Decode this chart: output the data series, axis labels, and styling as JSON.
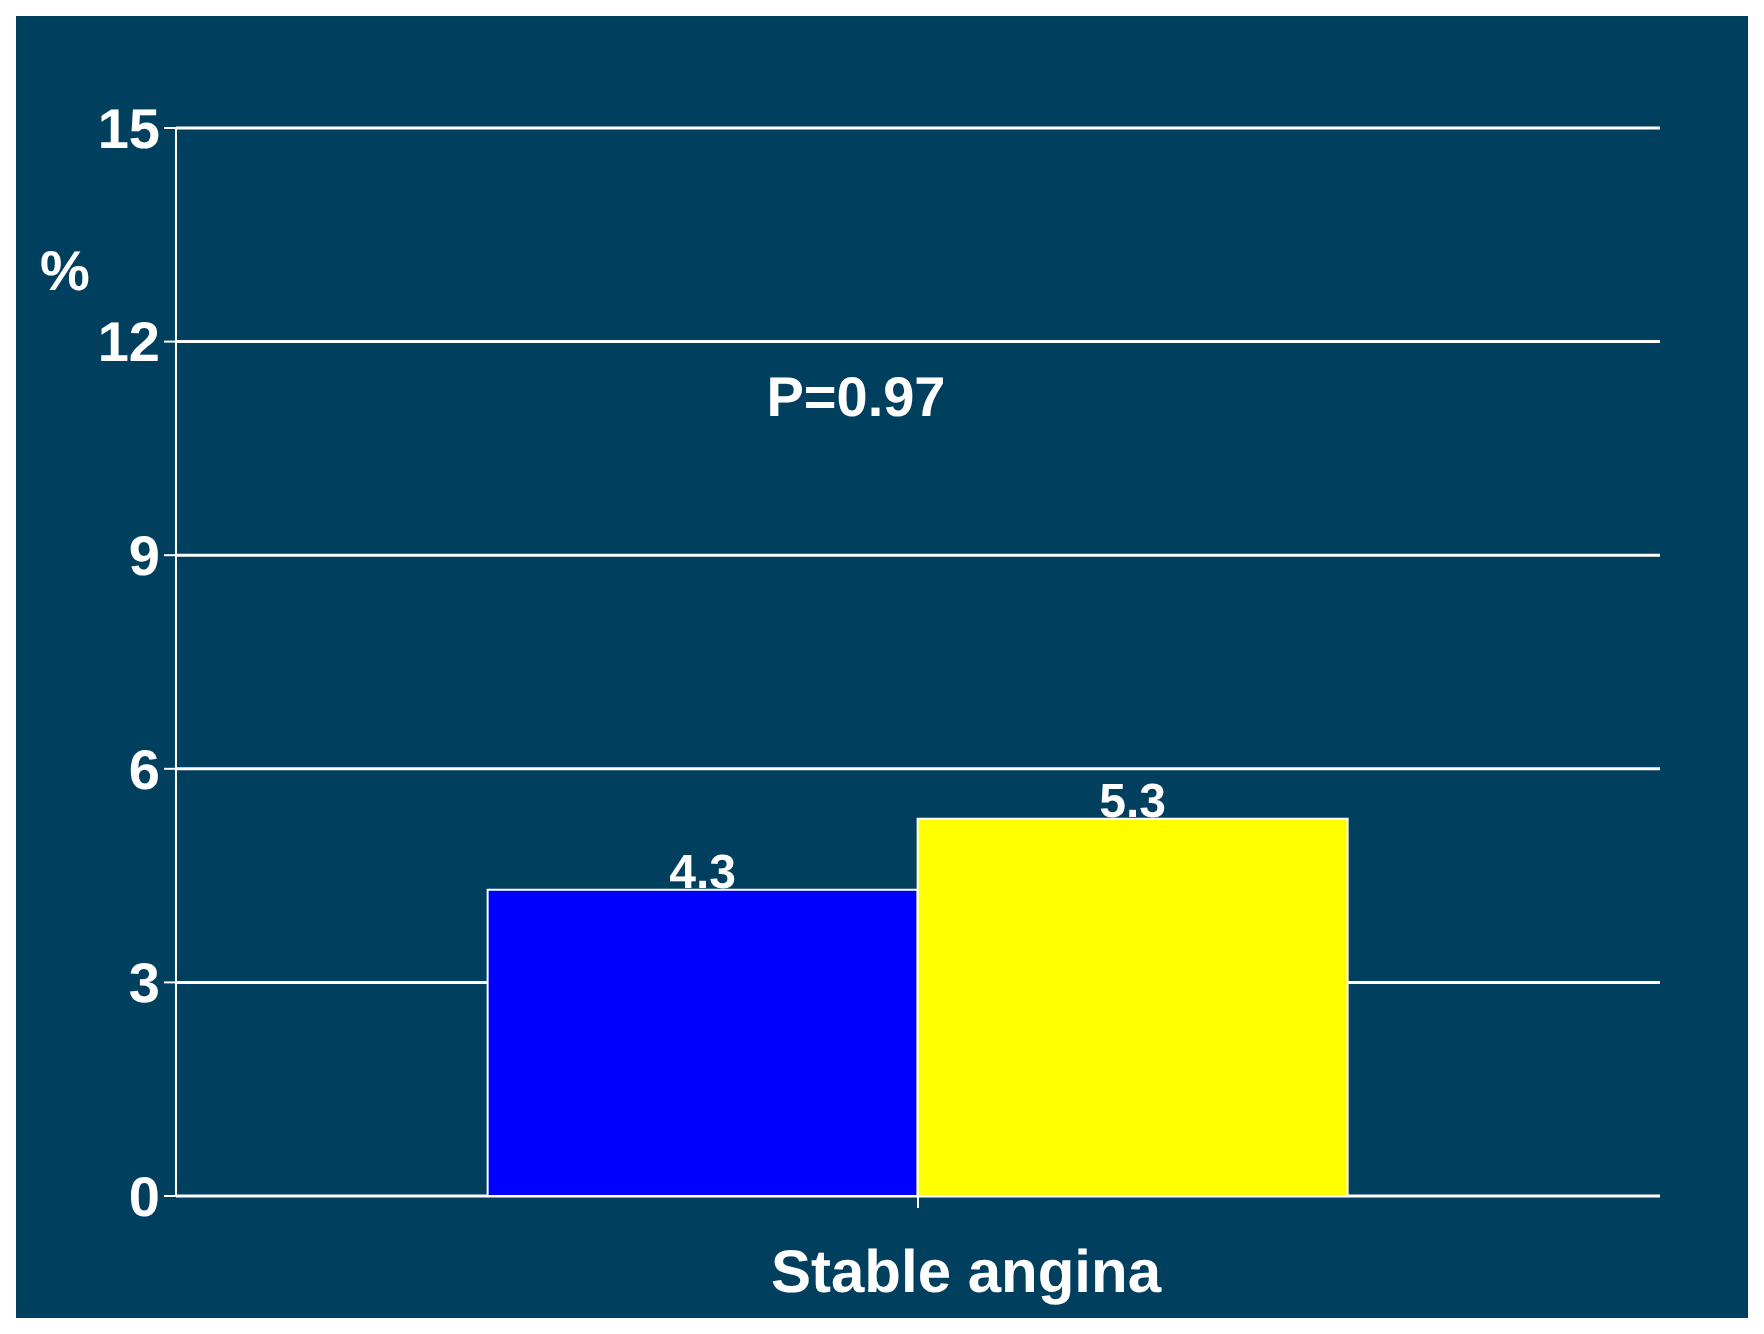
{
  "chart_data": {
    "type": "bar",
    "xlabel": "Stable angina",
    "ylabel": "%",
    "categories": [
      null
    ],
    "series": [
      {
        "color": "#0000ff",
        "values": [
          4.3
        ]
      },
      {
        "color": "#ffff00",
        "values": [
          5.3
        ]
      }
    ],
    "ylim": [
      0,
      15
    ],
    "yticks": [
      0,
      3,
      6,
      9,
      12,
      15
    ],
    "grid": "y",
    "data_labels": true,
    "annotations": [
      "P=0.97"
    ]
  }
}
